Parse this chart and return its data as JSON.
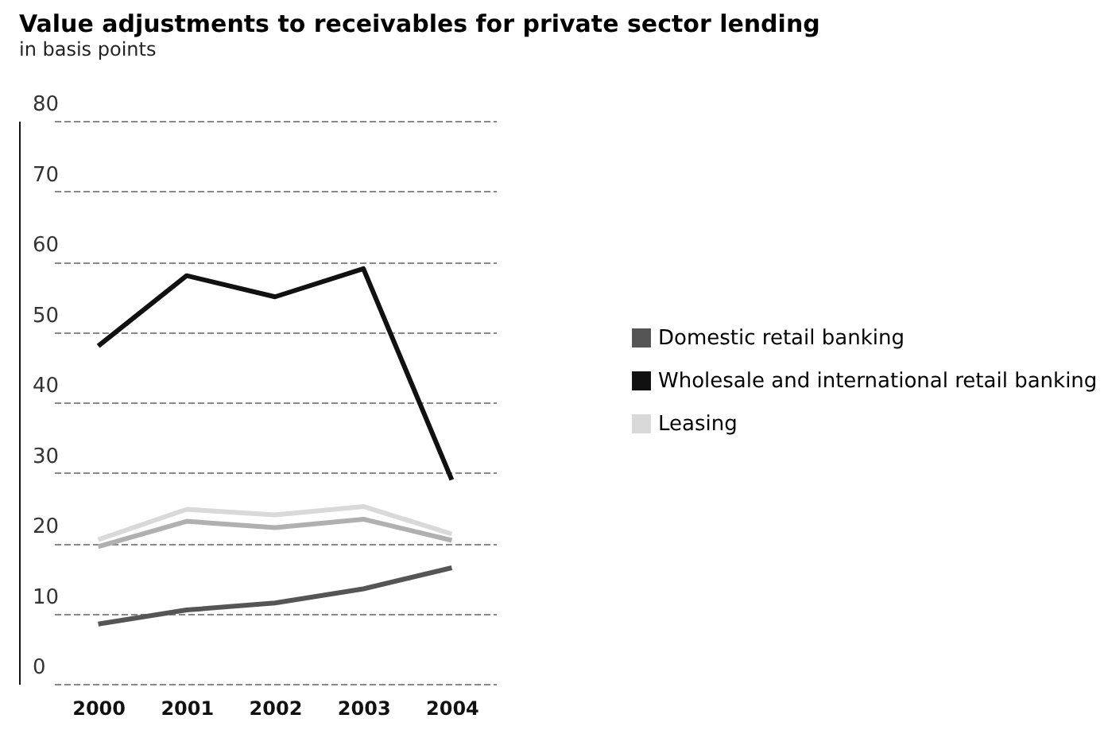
{
  "chart_data": {
    "type": "line",
    "title": "Value adjustments to receivables for private sector lending",
    "subtitle": "in basis points",
    "categories": [
      "2000",
      "2001",
      "2002",
      "2003",
      "2004"
    ],
    "series": [
      {
        "name": "Domestic retail banking",
        "color": "#555555",
        "values": [
          8.5,
          10.5,
          11.5,
          13.5,
          16.5
        ]
      },
      {
        "name": "Wholesale and international retail banking",
        "color": "#111111",
        "values": [
          48,
          58,
          55,
          59,
          29
        ]
      },
      {
        "name": "Leasing",
        "color": "#d9d9d9",
        "values": [
          20.5,
          24.8,
          24,
          25.2,
          21.3
        ]
      },
      {
        "color": "#b0b0b0",
        "values": [
          19.5,
          23.1,
          22.2,
          23.4,
          20.4
        ]
      }
    ],
    "ylim": [
      0,
      80
    ],
    "yticks": [
      0,
      10,
      20,
      30,
      40,
      50,
      60,
      70,
      80
    ],
    "grid": "y",
    "legend": "right",
    "line_style": "solid",
    "marker": "none"
  }
}
